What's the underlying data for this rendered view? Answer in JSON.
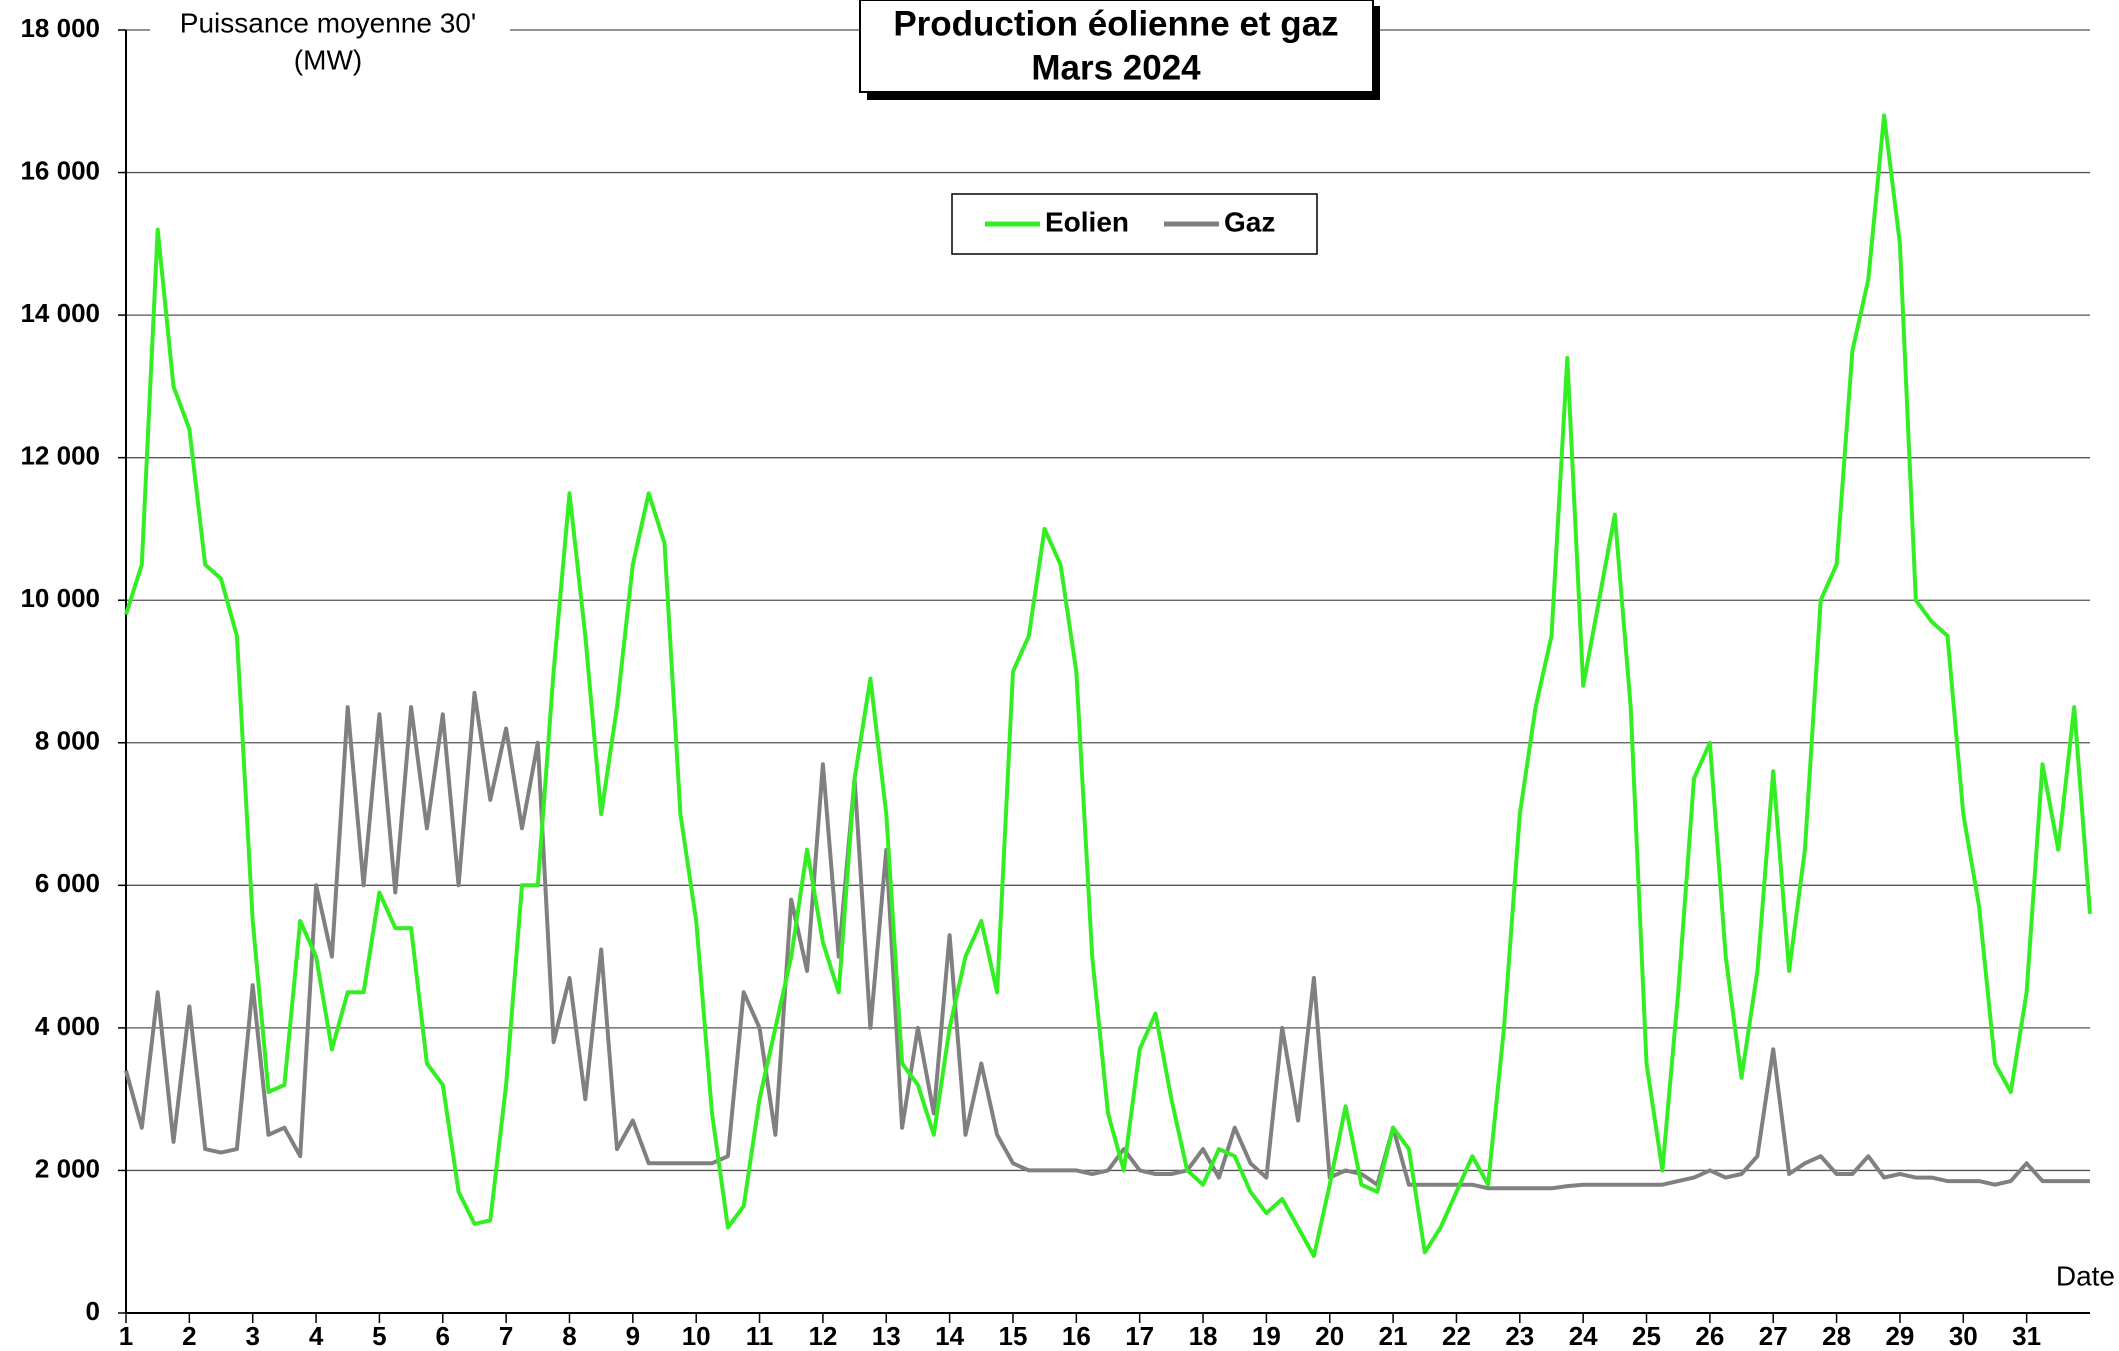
{
  "chart_data": {
    "type": "line",
    "title": "Production éolienne et gaz",
    "subtitle": "Mars 2024",
    "ylabel": [
      "Puissance moyenne 30'",
      "(MW)"
    ],
    "xlabel": "Date",
    "x": [
      1,
      1.25,
      1.5,
      1.75,
      2,
      2.25,
      2.5,
      2.75,
      3,
      3.25,
      3.5,
      3.75,
      4,
      4.25,
      4.5,
      4.75,
      5,
      5.25,
      5.5,
      5.75,
      6,
      6.25,
      6.5,
      6.75,
      7,
      7.25,
      7.5,
      7.75,
      8,
      8.25,
      8.5,
      8.75,
      9,
      9.25,
      9.5,
      9.75,
      10,
      10.25,
      10.5,
      10.75,
      11,
      11.25,
      11.5,
      11.75,
      12,
      12.25,
      12.5,
      12.75,
      13,
      13.25,
      13.5,
      13.75,
      14,
      14.25,
      14.5,
      14.75,
      15,
      15.25,
      15.5,
      15.75,
      16,
      16.25,
      16.5,
      16.75,
      17,
      17.25,
      17.5,
      17.75,
      18,
      18.25,
      18.5,
      18.75,
      19,
      19.25,
      19.5,
      19.75,
      20,
      20.25,
      20.5,
      20.75,
      21,
      21.25,
      21.5,
      21.75,
      22,
      22.25,
      22.5,
      22.75,
      23,
      23.25,
      23.5,
      23.75,
      24,
      24.25,
      24.5,
      24.75,
      25,
      25.25,
      25.5,
      25.75,
      26,
      26.25,
      26.5,
      26.75,
      27,
      27.25,
      27.5,
      27.75,
      28,
      28.25,
      28.5,
      28.75,
      29,
      29.25,
      29.5,
      29.75,
      30,
      30.25,
      30.5,
      30.75,
      31,
      31.25,
      31.5,
      31.75,
      32
    ],
    "series": [
      {
        "name": "Eolien",
        "color": "#33ee22",
        "values": [
          9800,
          10500,
          15200,
          13000,
          12400,
          10500,
          10300,
          9500,
          5500,
          3100,
          3200,
          5500,
          5000,
          3700,
          4500,
          4500,
          5900,
          5400,
          5400,
          3500,
          3200,
          1700,
          1250,
          1300,
          3200,
          6000,
          6000,
          9000,
          11500,
          9500,
          7000,
          8500,
          10500,
          11500,
          10800,
          7000,
          5500,
          2800,
          1200,
          1500,
          3000,
          4000,
          5000,
          6500,
          5200,
          4500,
          7500,
          8900,
          7000,
          3500,
          3200,
          2500,
          4000,
          5000,
          5500,
          4500,
          9000,
          9500,
          11000,
          10500,
          9000,
          5000,
          2800,
          2000,
          3700,
          4200,
          3000,
          2000,
          1800,
          2300,
          2200,
          1700,
          1400,
          1600,
          1200,
          800,
          1800,
          2900,
          1800,
          1700,
          2600,
          2300,
          850,
          1200,
          1700,
          2200,
          1800,
          4000,
          7000,
          8500,
          9500,
          13400,
          8800,
          10000,
          11200,
          8500,
          3500,
          2000,
          4500,
          7500,
          8000,
          5000,
          3300,
          4800,
          7600,
          4800,
          6500,
          10000,
          10500,
          13500,
          14500,
          16800,
          15000,
          10000,
          9700,
          9500,
          7000,
          5700,
          3500,
          3100,
          4500,
          7700,
          6500,
          8500,
          5600
        ]
      },
      {
        "name": "Gaz",
        "color": "#808080",
        "values": [
          3400,
          2600,
          4500,
          2400,
          4300,
          2300,
          2250,
          2300,
          4600,
          2500,
          2600,
          2200,
          6000,
          5000,
          8500,
          6000,
          8400,
          5900,
          8500,
          6800,
          8400,
          6000,
          8700,
          7200,
          8200,
          6800,
          8000,
          3800,
          4700,
          3000,
          5100,
          2300,
          2700,
          2100,
          2100,
          2100,
          2100,
          2100,
          2200,
          4500,
          4000,
          2500,
          5800,
          4800,
          7700,
          5000,
          7500,
          4000,
          6500,
          2600,
          4000,
          2800,
          5300,
          2500,
          3500,
          2500,
          2100,
          2000,
          2000,
          2000,
          2000,
          1950,
          2000,
          2300,
          2000,
          1950,
          1950,
          2000,
          2300,
          1900,
          2600,
          2100,
          1900,
          4000,
          2700,
          4700,
          1900,
          2000,
          1950,
          1800,
          2600,
          1800,
          1800,
          1800,
          1800,
          1800,
          1750,
          1750,
          1750,
          1750,
          1750,
          1780,
          1800,
          1800,
          1800,
          1800,
          1800,
          1800,
          1850,
          1900,
          2000,
          1900,
          1950,
          2200,
          3700,
          1950,
          2100,
          2200,
          1950,
          1950,
          2200,
          1900,
          1950,
          1900,
          1900,
          1850,
          1850,
          1850,
          1800,
          1850,
          2100,
          1850,
          1850,
          1850,
          1850
        ]
      }
    ],
    "xlim": [
      1,
      32
    ],
    "xticks": [
      1,
      2,
      3,
      4,
      5,
      6,
      7,
      8,
      9,
      10,
      11,
      12,
      13,
      14,
      15,
      16,
      17,
      18,
      19,
      20,
      21,
      22,
      23,
      24,
      25,
      26,
      27,
      28,
      29,
      30,
      31
    ],
    "ylim": [
      0,
      18000
    ],
    "yticks": [
      0,
      {
        "value": 2000,
        "label": "2 000"
      },
      {
        "value": 4000,
        "label": "4 000"
      },
      {
        "value": 6000,
        "label": "6 000"
      },
      {
        "value": 8000,
        "label": "8 000"
      },
      {
        "value": 10000,
        "label": "10 000"
      },
      {
        "value": 12000,
        "label": "12 000"
      },
      {
        "value": 14000,
        "label": "14 000"
      },
      {
        "value": 16000,
        "label": "16 000"
      },
      {
        "value": 18000,
        "label": "18 000"
      }
    ],
    "grid": true,
    "legend": "top"
  }
}
